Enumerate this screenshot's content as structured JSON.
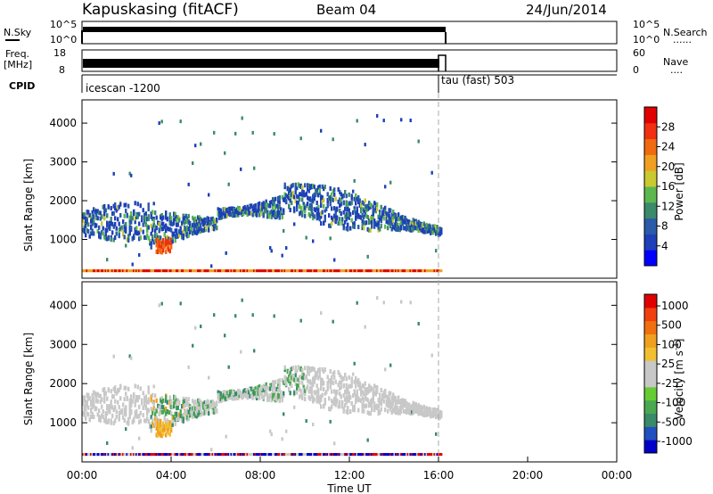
{
  "header": {
    "station": "Kapuskasing (fitACF)",
    "beam": "Beam 04",
    "date": "24/Jun/2014"
  },
  "noise_panel": {
    "left_label": "N.Sky",
    "right_label": "N.Search",
    "ticks_left": [
      "10^5",
      "10^0"
    ],
    "ticks_right": [
      "10^5",
      "10^0"
    ],
    "legend_mark": "......"
  },
  "freq_panel": {
    "left_label_line1": "Freq.",
    "left_label_line2": "[MHz]",
    "right_label": "Nave",
    "ticks_left": [
      "18",
      "8"
    ],
    "ticks_right": [
      "60",
      "0"
    ],
    "legend_mark": "....",
    "end_utc_hours": 16.1
  },
  "cpid": {
    "label": "CPID",
    "segments": [
      {
        "name": "icescan -1200",
        "start_hour": 0
      },
      {
        "name": "tau (fast) 503",
        "start_hour": 16
      }
    ]
  },
  "x_axis": {
    "label": "Time UT",
    "range_hours": [
      0,
      24
    ],
    "ticks": [
      "00:00",
      "04:00",
      "08:00",
      "12:00",
      "16:00",
      "20:00",
      "00:00"
    ],
    "tick_hours": [
      0,
      4,
      8,
      12,
      16,
      20,
      24
    ]
  },
  "power_panel": {
    "ylabel": "Slant Range [km]",
    "yticks": [
      "1000",
      "2000",
      "3000",
      "4000"
    ],
    "ytick_values": [
      1000,
      2000,
      3000,
      4000
    ],
    "ylim": [
      0,
      4600
    ],
    "colorbar_label": "Power [dB]",
    "colorbar_ticks": [
      "4",
      "8",
      "12",
      "16",
      "20",
      "24",
      "28"
    ],
    "colors": [
      "#0000ff",
      "#1d3fb8",
      "#2a5aa8",
      "#3b8a6a",
      "#5cb84e",
      "#c9c930",
      "#f0a020",
      "#f06a10",
      "#f03010",
      "#e00000"
    ]
  },
  "velocity_panel": {
    "ylabel": "Slant Range [km]",
    "yticks": [
      "1000",
      "2000",
      "3000",
      "4000"
    ],
    "ytick_values": [
      1000,
      2000,
      3000,
      4000
    ],
    "ylim": [
      0,
      4600
    ],
    "colorbar_label": "Velocity [m s^-1]",
    "colorbar_ticks": [
      "1000",
      "500",
      "100",
      "25",
      "-25",
      "-100",
      "-500",
      "-1000"
    ],
    "colors": [
      "#0000c8",
      "#2050c0",
      "#3a8a6a",
      "#4aa850",
      "#66cc33",
      "#c8c8c8",
      "#c8c8c8",
      "#f0c030",
      "#f0a020",
      "#f07010",
      "#f04010",
      "#e00000"
    ]
  },
  "chart_data": {
    "type": "heatmap",
    "title": "Kapuskasing (fitACF)",
    "xlabel": "Time UT",
    "ylabel": "Slant Range [km]",
    "xlim_hours": [
      0,
      24
    ],
    "ylim_km": [
      0,
      4600
    ],
    "data_end_hour": 16.1,
    "series": [
      {
        "name": "Power [dB]",
        "range": [
          0,
          30
        ]
      },
      {
        "name": "Velocity [m s^-1]",
        "range": [
          -1000,
          1000
        ]
      }
    ],
    "features": [
      {
        "kind": "main_band",
        "hours": [
          0,
          16
        ],
        "range_km_start": 1400,
        "range_km_peak": 2100,
        "peak_hour": 9
      },
      {
        "kind": "ground_scatter_line",
        "hours": [
          0,
          16
        ],
        "range_km": 180
      },
      {
        "kind": "strong_echo",
        "hours": [
          3.3,
          4.0
        ],
        "range_km": [
          650,
          1000
        ]
      }
    ]
  }
}
